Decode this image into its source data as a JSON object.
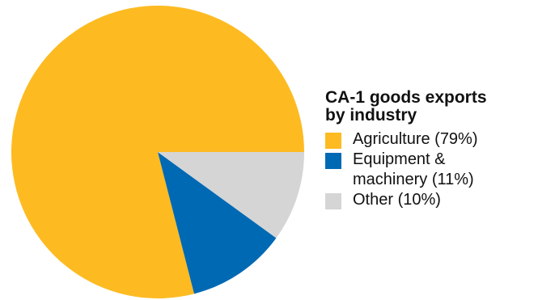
{
  "chart_data": {
    "type": "pie",
    "title": "CA-1 goods exports by industry",
    "title_lines": [
      "CA-1 goods exports",
      "by industry"
    ],
    "legend_position": "right",
    "slices": [
      {
        "label": "Agriculture",
        "legend_lines": [
          "Agriculture (79%)"
        ],
        "value": 79,
        "color": "#FDBB21"
      },
      {
        "label": "Equipment & machinery",
        "legend_lines": [
          "Equipment &",
          "machinery (11%)"
        ],
        "value": 11,
        "color": "#0069B4"
      },
      {
        "label": "Other",
        "legend_lines": [
          "Other (10%)"
        ],
        "value": 10,
        "color": "#D5D5D5"
      }
    ]
  }
}
